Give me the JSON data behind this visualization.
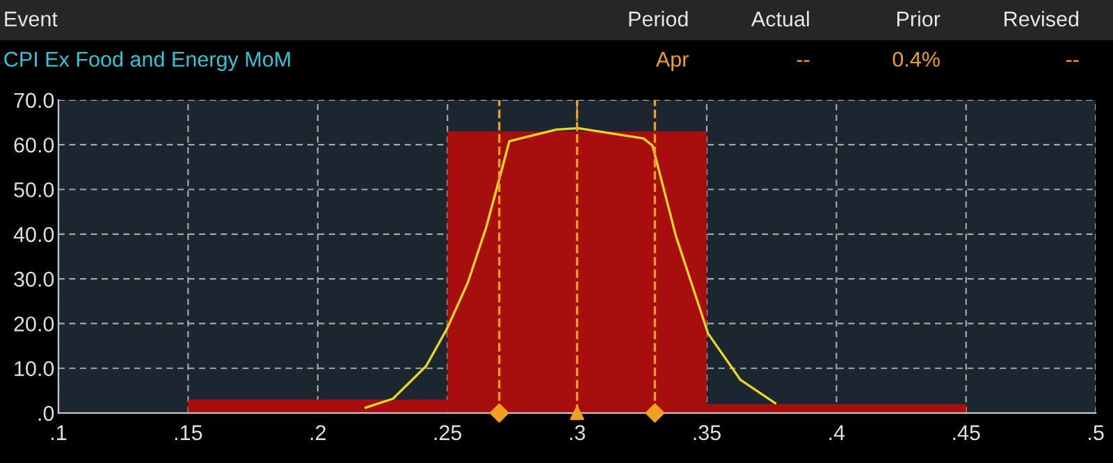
{
  "chart_data": {
    "type": "histogram",
    "annotations": [
      "Event",
      "Period",
      "Actual",
      "Prior",
      "Revised",
      "CPI Ex Food and Energy MoM",
      "Apr",
      "--",
      "0.4%",
      "--"
    ],
    "bins": [
      0.15,
      0.25,
      0.35,
      0.45
    ],
    "values": [
      3,
      63,
      2
    ],
    "color": "#a80e0e",
    "series": [
      {
        "type": "line",
        "color": "#e8d820",
        "x": [
          0.2185,
          0.229,
          0.2418,
          0.2498,
          0.2579,
          0.265,
          0.2703,
          0.2739,
          0.292,
          0.3004,
          0.3256,
          0.3291,
          0.3381,
          0.3505,
          0.363,
          0.3764
        ],
        "values": [
          1.2,
          3.2,
          10.5,
          18.8,
          29.2,
          41.6,
          53,
          60.8,
          63.4,
          63.7,
          61.4,
          59.8,
          39.6,
          17.8,
          7.4,
          2.2
        ]
      },
      {
        "type": "scatter",
        "marker": "diamond",
        "color": "#f0a020",
        "x": [
          0.27,
          0.33
        ],
        "values": [
          0,
          0
        ]
      },
      {
        "type": "scatter",
        "marker": "triangle",
        "color": "#f0a020",
        "x": [
          0.3
        ],
        "values": [
          0
        ]
      }
    ],
    "ref_lines": [
      {
        "axis": "x",
        "value": 0.27,
        "color": "#f0a020",
        "line_style": "dashed"
      },
      {
        "axis": "x",
        "value": 0.3,
        "color": "#f0a020",
        "line_style": "dashed"
      },
      {
        "axis": "x",
        "value": 0.33,
        "color": "#f0a020",
        "line_style": "dashed"
      }
    ],
    "xlim": [
      0.1,
      0.5
    ],
    "ylim": [
      0,
      70
    ],
    "xticks": [
      {
        "value": 0.1,
        "label": ".1"
      },
      {
        "value": 0.15,
        "label": ".15"
      },
      {
        "value": 0.2,
        "label": ".2"
      },
      {
        "value": 0.25,
        "label": ".25"
      },
      {
        "value": 0.3,
        "label": ".3"
      },
      {
        "value": 0.35,
        "label": ".35"
      },
      {
        "value": 0.4,
        "label": ".4"
      },
      {
        "value": 0.45,
        "label": ".45"
      },
      {
        "value": 0.5,
        "label": ".5"
      }
    ],
    "yticks": [
      {
        "value": 0,
        "label": ".0"
      },
      {
        "value": 10,
        "label": "10.0"
      },
      {
        "value": 20,
        "label": "20.0"
      },
      {
        "value": 30,
        "label": "30.0"
      },
      {
        "value": 40,
        "label": "40.0"
      },
      {
        "value": 50,
        "label": "50.0"
      },
      {
        "value": 60,
        "label": "60.0"
      },
      {
        "value": 70,
        "label": "70.0"
      }
    ],
    "grid": true
  }
}
